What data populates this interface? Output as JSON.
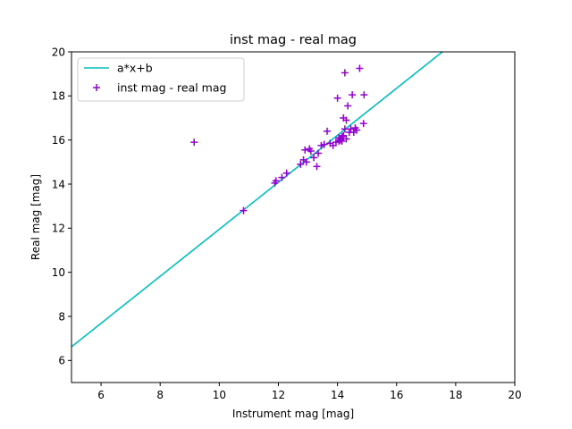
{
  "chart_data": {
    "type": "scatter",
    "title": "inst mag - real mag",
    "xlabel": "Instrument mag [mag]",
    "ylabel": "Real mag [mag]",
    "xlim": [
      5,
      20
    ],
    "ylim": [
      5,
      20
    ],
    "xticks": [
      6,
      8,
      10,
      12,
      14,
      16,
      18,
      20
    ],
    "yticks": [
      6,
      8,
      10,
      12,
      14,
      16,
      18,
      20
    ],
    "grid": false,
    "legend_position": "top-left",
    "series": [
      {
        "name": "a*x+b",
        "kind": "line",
        "color": "#00bfbf",
        "x": [
          5,
          17.55
        ],
        "y": [
          6.62,
          20
        ]
      },
      {
        "name": "inst mag - real mag",
        "kind": "scatter",
        "marker": "plus",
        "color": "#9400d3",
        "x": [
          9.15,
          10.82,
          11.88,
          11.92,
          12.12,
          12.28,
          12.75,
          12.85,
          12.9,
          12.95,
          13.05,
          13.1,
          13.2,
          13.3,
          13.35,
          13.45,
          13.55,
          13.65,
          13.75,
          13.85,
          13.95,
          14.0,
          14.05,
          14.05,
          14.1,
          14.12,
          14.15,
          14.15,
          14.2,
          14.2,
          14.25,
          14.25,
          14.3,
          14.3,
          14.35,
          14.4,
          14.45,
          14.5,
          14.55,
          14.6,
          14.65,
          14.75,
          14.88,
          14.9
        ],
        "y": [
          15.9,
          12.8,
          14.05,
          14.15,
          14.3,
          14.5,
          14.9,
          15.1,
          15.55,
          15.0,
          15.6,
          15.5,
          15.2,
          14.8,
          15.4,
          15.75,
          15.8,
          16.4,
          15.85,
          15.75,
          15.9,
          17.9,
          15.95,
          16.1,
          16.0,
          16.05,
          15.95,
          16.15,
          16.2,
          17.0,
          16.5,
          19.05,
          16.05,
          16.9,
          17.55,
          16.35,
          16.5,
          18.05,
          16.35,
          16.55,
          16.45,
          19.25,
          16.75,
          18.05
        ]
      }
    ]
  }
}
